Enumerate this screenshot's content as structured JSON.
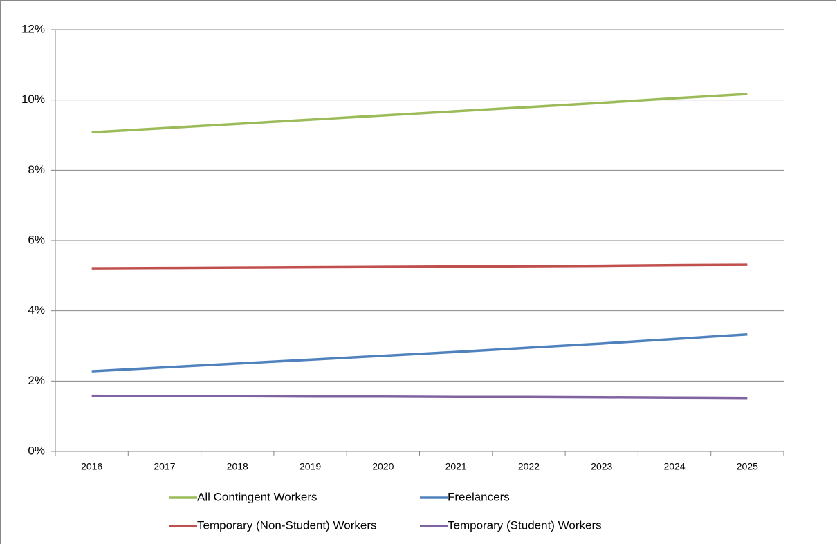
{
  "chart_data": {
    "type": "line",
    "categories": [
      "2016",
      "2017",
      "2018",
      "2019",
      "2020",
      "2021",
      "2022",
      "2023",
      "2024",
      "2025"
    ],
    "series": [
      {
        "name": "All Contingent Workers",
        "color": "#9bbb59",
        "values": [
          9.08,
          9.2,
          9.32,
          9.44,
          9.56,
          9.68,
          9.8,
          9.92,
          10.05,
          10.17
        ]
      },
      {
        "name": "Freelancers",
        "color": "#4f81bd",
        "values": [
          2.28,
          2.39,
          2.5,
          2.61,
          2.72,
          2.83,
          2.95,
          3.07,
          3.2,
          3.33
        ]
      },
      {
        "name": "Temporary (Non-Student) Workers",
        "color": "#c0504d",
        "values": [
          5.21,
          5.22,
          5.23,
          5.24,
          5.25,
          5.26,
          5.27,
          5.28,
          5.3,
          5.31
        ]
      },
      {
        "name": "Temporary (Student) Workers",
        "color": "#8064a2",
        "values": [
          1.58,
          1.57,
          1.57,
          1.56,
          1.56,
          1.55,
          1.55,
          1.54,
          1.53,
          1.52
        ]
      }
    ],
    "ylim": [
      0,
      12
    ],
    "yticks": [
      {
        "value": 0,
        "label": "0%"
      },
      {
        "value": 2,
        "label": "2%"
      },
      {
        "value": 4,
        "label": "4%"
      },
      {
        "value": 6,
        "label": "6%"
      },
      {
        "value": 8,
        "label": "8%"
      },
      {
        "value": 10,
        "label": "10%"
      },
      {
        "value": 12,
        "label": "12%"
      }
    ],
    "grid": true,
    "legend": "bottom"
  }
}
